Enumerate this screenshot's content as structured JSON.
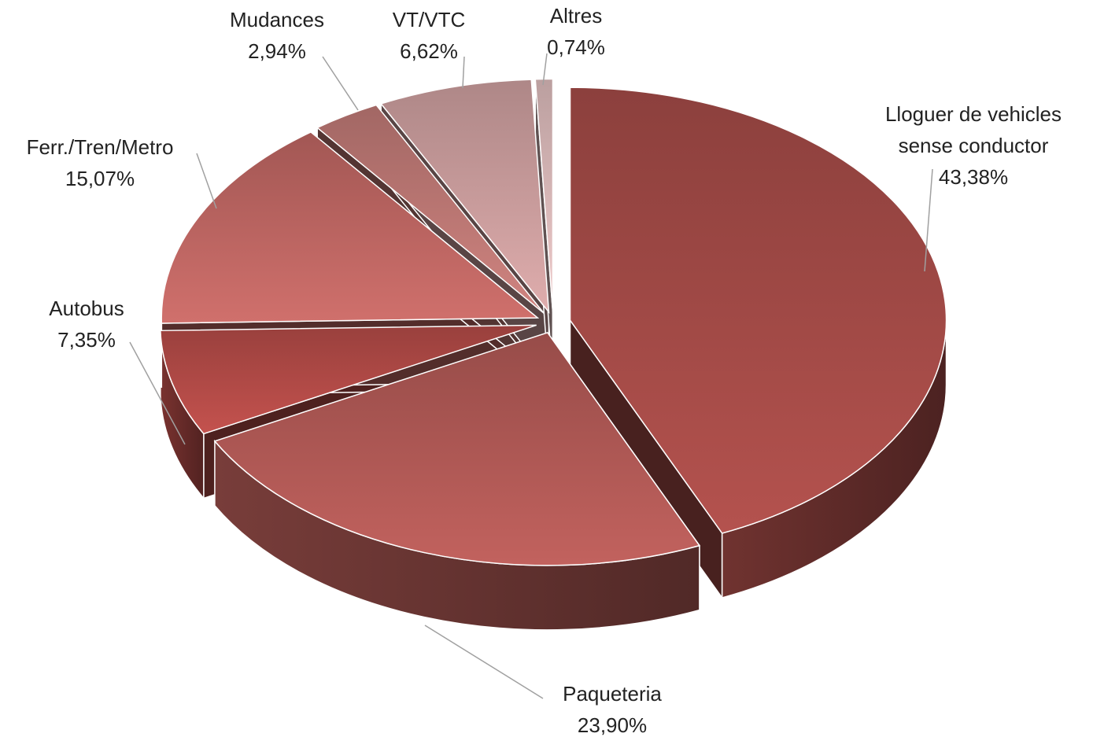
{
  "chart_data": {
    "type": "pie",
    "categories": [
      "Lloguer de vehicles sense conductor",
      "Paqueteria",
      "Autobus",
      "Ferr./Tren/Metro",
      "Mudances",
      "VT/VTC",
      "Altres"
    ],
    "values": [
      43.38,
      23.9,
      7.35,
      15.07,
      2.94,
      6.62,
      0.74
    ],
    "value_labels": [
      "43,38%",
      "23,90%",
      "7,35%",
      "15,07%",
      "2,94%",
      "6,62%",
      "0,74%"
    ],
    "colors": [
      "#b4524e",
      "#c2625e",
      "#c4524e",
      "#d0706c",
      "#d08480",
      "#dfadad",
      "#f0cccc"
    ]
  }
}
